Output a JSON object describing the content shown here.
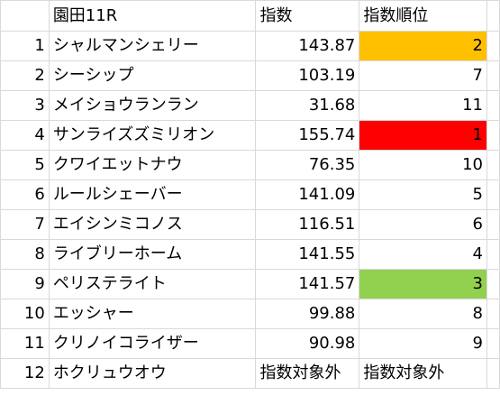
{
  "header": {
    "race": "園田11R",
    "index_label": "指数",
    "rank_label": "指数順位"
  },
  "rows": [
    {
      "num": "1",
      "name": "シャルマンシェリー",
      "index": "143.87",
      "rank": "2",
      "highlight": "#ffc000"
    },
    {
      "num": "2",
      "name": "シーシップ",
      "index": "103.19",
      "rank": "7",
      "highlight": ""
    },
    {
      "num": "3",
      "name": "メイショウランラン",
      "index": "31.68",
      "rank": "11",
      "highlight": ""
    },
    {
      "num": "4",
      "name": "サンライズズミリオン",
      "index": "155.74",
      "rank": "1",
      "highlight": "#ff0000"
    },
    {
      "num": "5",
      "name": "クワイエットナウ",
      "index": "76.35",
      "rank": "10",
      "highlight": ""
    },
    {
      "num": "6",
      "name": "ルールシェーバー",
      "index": "141.09",
      "rank": "5",
      "highlight": ""
    },
    {
      "num": "7",
      "name": "エイシンミコノス",
      "index": "116.51",
      "rank": "6",
      "highlight": ""
    },
    {
      "num": "8",
      "name": "ライブリーホーム",
      "index": "141.55",
      "rank": "4",
      "highlight": ""
    },
    {
      "num": "9",
      "name": "ペリステライト",
      "index": "141.57",
      "rank": "3",
      "highlight": "#92d050"
    },
    {
      "num": "10",
      "name": "エッシャー",
      "index": "99.88",
      "rank": "8",
      "highlight": ""
    },
    {
      "num": "11",
      "name": "クリノイコライザー",
      "index": "90.98",
      "rank": "9",
      "highlight": ""
    },
    {
      "num": "12",
      "name": "ホクリュウオウ",
      "index": "指数対象外",
      "rank": "指数対象外",
      "highlight": ""
    }
  ]
}
